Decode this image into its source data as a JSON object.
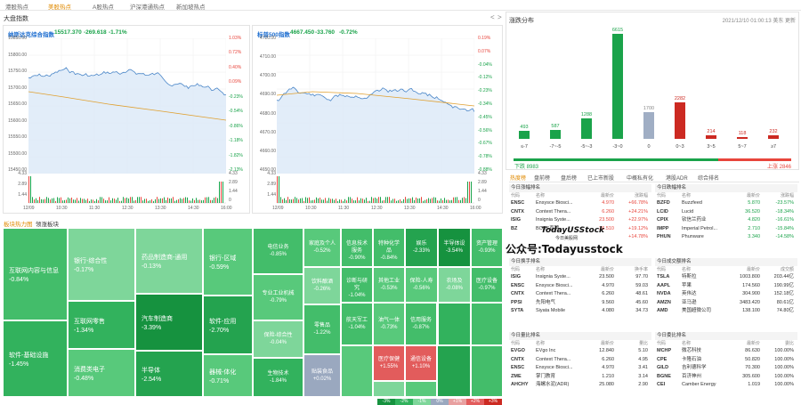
{
  "tabs": [
    "港股热点",
    "美股热点",
    "A股热点",
    "沪深港通热点",
    "新加坡热点"
  ],
  "active_tab": 1,
  "market": {
    "title": "大盘指数",
    "nav_prev": "<",
    "nav_next": ">"
  },
  "nasdaq": {
    "name": "纳斯达克综合指数",
    "price": "15517.370",
    "change": "-269.618",
    "pct": "-1.71%",
    "yleft": [
      "15850.00",
      "15800.00",
      "15750.00",
      "15700.00",
      "15650.00",
      "15600.00",
      "15550.00",
      "15500.00",
      "15450.00"
    ],
    "yright": [
      "1.03%",
      "0.72%",
      "0.40%",
      "0.09%",
      "-0.23%",
      "-0.54%",
      "-0.86%",
      "-1.18%",
      "-1.82%",
      "-2.13%"
    ],
    "vleft": [
      "4.33",
      "2.89",
      "1.44"
    ],
    "vright": [
      "4.33",
      "2.89",
      "1.44",
      "0"
    ],
    "xticks": [
      "12/09",
      "10:30",
      "11:30",
      "12:30",
      "13:30",
      "14:30",
      "16:00"
    ]
  },
  "sp500": {
    "name": "标普500指数",
    "price": "4667.450",
    "change": "-33.760",
    "pct": "-0.72%",
    "yleft": [
      "4720.00",
      "4710.00",
      "4700.00",
      "4690.00",
      "4680.00",
      "4670.00",
      "4660.00",
      "4650.00"
    ],
    "yright": [
      "0.19%",
      "0.07%",
      "-0.04%",
      "-0.12%",
      "-0.23%",
      "-0.34%",
      "-0.45%",
      "-0.56%",
      "-0.67%",
      "-0.78%",
      "-0.88%"
    ],
    "vleft": [
      "4.33",
      "2.89",
      "1.44"
    ],
    "vright": [
      "4.33",
      "2.89",
      "1.44",
      "0"
    ],
    "xticks": [
      "12/09",
      "10:30",
      "11:30",
      "12:30",
      "13:30",
      "14:30",
      "16:00"
    ]
  },
  "dist": {
    "title": "涨跌分布",
    "time": "2021/12/10 01:00:13 美东 更新",
    "categories": [
      "≤-7",
      "-7~-5",
      "-5~-3",
      "-3~0",
      "0",
      "0~3",
      "3~5",
      "5~7",
      "≥7"
    ],
    "values": [
      493,
      587,
      1288,
      6615,
      1700,
      2282,
      214,
      118,
      232
    ],
    "down_label": "下跌 8983",
    "up_label": "上涨 2846"
  },
  "hot_tabs": [
    "热度榜",
    "盘前榜",
    "盘后榜",
    "已上市新股",
    "中概私有化",
    "港股ADR",
    "综合排名"
  ],
  "tables": [
    {
      "title": "今日涨幅排名",
      "cols": [
        "代码",
        "名称",
        "最新价",
        "涨跌幅"
      ],
      "rows": [
        [
          "ENSC",
          "Ensysce Biosci...",
          "4.970",
          "+66.78%"
        ],
        [
          "CNTX",
          "Context Thera...",
          "6.260",
          "+24.21%"
        ],
        [
          "ISIG",
          "Insignia Syste...",
          "23.500",
          "+22.97%"
        ],
        [
          "BZ",
          "BOSS直聘",
          "36.510",
          "+19.12%"
        ],
        [
          "",
          "",
          "",
          "+14.78%"
        ]
      ]
    },
    {
      "title": "今日跌幅排名",
      "cols": [
        "代码",
        "名称",
        "最新价",
        "涨跌幅"
      ],
      "rows": [
        [
          "BZFD",
          "Buzzfeed",
          "5.870",
          "-23.57%"
        ],
        [
          "LCID",
          "Lucid",
          "36.520",
          "-18.34%"
        ],
        [
          "CPIX",
          "钦信兰药业",
          "4.820",
          "-16.61%"
        ],
        [
          "IMPP",
          "Imperial Petrol...",
          "2.710",
          "-15.84%"
        ],
        [
          "PHUN",
          "Phunware",
          "3.340",
          "-14.58%"
        ]
      ]
    },
    {
      "title": "今日换手排名",
      "cols": [
        "代码",
        "名称",
        "最新价",
        "换手率"
      ],
      "rows": [
        [
          "ISIG",
          "Insignia Syste...",
          "23.500",
          "97.70"
        ],
        [
          "ENSC",
          "Ensysce Biosci...",
          "4.970",
          "59.03"
        ],
        [
          "CNTX",
          "Context Thera...",
          "6.260",
          "48.61"
        ],
        [
          "PPSI",
          "先阳电气",
          "9.560",
          "45.60"
        ],
        [
          "SYTA",
          "Siyata Mobile",
          "4.080",
          "34.73"
        ]
      ]
    },
    {
      "title": "今日成交额排名",
      "cols": [
        "代码",
        "名称",
        "最新价",
        "成交额"
      ],
      "rows": [
        [
          "TSLA",
          "特斯拉",
          "1003.800",
          "203.44亿"
        ],
        [
          "AAPL",
          "苹果",
          "174.560",
          "190.99亿"
        ],
        [
          "NVDA",
          "英伟达",
          "304.900",
          "152.18亿"
        ],
        [
          "AMZN",
          "亚马逊",
          "3483.420",
          "80.61亿"
        ],
        [
          "AMD",
          "美国超微公司",
          "138.100",
          "74.80亿"
        ]
      ]
    },
    {
      "title": "今日量比排名",
      "cols": [
        "代码",
        "名称",
        "最新价",
        "量比"
      ],
      "rows": [
        [
          "EVGO",
          "EVgo Inc",
          "12.840",
          "5.10"
        ],
        [
          "CNTX",
          "Context Thera...",
          "6.260",
          "4.95"
        ],
        [
          "ENSC",
          "Ensysce Biosci...",
          "4.970",
          "3.41"
        ],
        [
          "ZME",
          "掌门教育",
          "1.210",
          "3.14"
        ],
        [
          "AHCHY",
          "海螺水泥(ADR)",
          "25.080",
          "2.90"
        ]
      ]
    },
    {
      "title": "今日委比排名",
      "cols": [
        "代码",
        "名称",
        "最新价",
        "委比"
      ],
      "rows": [
        [
          "MCHP",
          "微芯科技",
          "86.630",
          "100.00%"
        ],
        [
          "CPE",
          "卡隆石油",
          "50.820",
          "100.00%"
        ],
        [
          "GILD",
          "吉利德科学",
          "70.300",
          "100.00%"
        ],
        [
          "BGNE",
          "百济神州",
          "305.600",
          "100.00%"
        ],
        [
          "CEI",
          "Camber Energy",
          "1.019",
          "100.00%"
        ]
      ]
    }
  ],
  "heatmap": {
    "tabs": [
      "板块热力图",
      "领涨板块"
    ],
    "tiles": [
      {
        "n": "互联网内容与信息",
        "v": "-0.84%"
      },
      {
        "n": "软件-基础设施",
        "v": "-1.45%"
      },
      {
        "n": "银行-综合性",
        "v": "-0.17%"
      },
      {
        "n": "互联网零售",
        "v": "-1.34%"
      },
      {
        "n": "消费类电子",
        "v": "-0.48%"
      },
      {
        "n": "药品制造商-通用",
        "v": "-0.13%"
      },
      {
        "n": "汽车制造商",
        "v": "-3.39%"
      },
      {
        "n": "半导体",
        "v": "-2.54%"
      },
      {
        "n": "银行-区域",
        "v": "-0.59%"
      },
      {
        "n": "软件-应用",
        "v": "-2.70%"
      },
      {
        "n": "器械-体化",
        "v": "-0.71%"
      },
      {
        "n": "电信业务",
        "v": "-0.85%"
      },
      {
        "n": "专业工业机械",
        "v": "-0.79%"
      },
      {
        "n": "保险-综合性",
        "v": "-0.04%"
      },
      {
        "n": "生物技术",
        "v": "-1.84%"
      },
      {
        "n": "家庭及个人",
        "v": "-0.52%"
      },
      {
        "n": "饮料酿酒",
        "v": "-0.26%"
      },
      {
        "n": "零售品",
        "v": "-1.22%"
      },
      {
        "n": "贴装食品",
        "v": "+0.02%"
      },
      {
        "n": "信息技术服务",
        "v": "-0.90%"
      },
      {
        "n": "特种化学品",
        "v": "-0.84%"
      },
      {
        "n": "诊断与研究",
        "v": "-1.04%"
      },
      {
        "n": "其他工业",
        "v": "-0.53%"
      },
      {
        "n": "航天军工",
        "v": "-1.04%"
      },
      {
        "n": "油气一体",
        "v": "-0.73%"
      },
      {
        "n": "信用服务",
        "v": "-0.87%"
      },
      {
        "n": "医疗保健",
        "v": "+1.55%"
      },
      {
        "n": "娱乐",
        "v": "-2.33%"
      },
      {
        "n": "半导体设",
        "v": "-3.54%"
      },
      {
        "n": "资产管理",
        "v": "-0.93%"
      },
      {
        "n": "保险-人寿",
        "v": "-0.56%"
      },
      {
        "n": "农场及",
        "v": "-0.08%"
      },
      {
        "n": "医疗设备",
        "v": "-0.97%"
      },
      {
        "n": "通信设备",
        "v": "+1.10%"
      }
    ]
  },
  "legend": [
    "-3%",
    "-2%",
    "-1%",
    "0%",
    "+1%",
    "+2%",
    "+3%"
  ],
  "watermark": {
    "line1": "TodayUSStock",
    "line2": "今日美股网",
    "line3": "公众号:Todayusstock"
  }
}
